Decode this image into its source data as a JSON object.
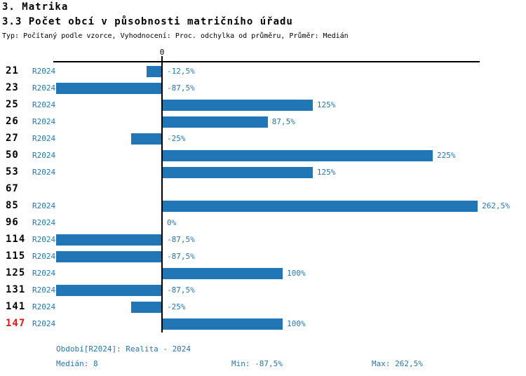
{
  "chart_data": {
    "type": "bar",
    "orientation": "horizontal",
    "title": "3. Matrika",
    "subtitle": "3.3 Počet obcí v působnosti matričního úřadu",
    "meta_line": "Typ: Počítaný podle vzorce, Vyhodnocení: Proc. odchylka od průměru, Průměr: Medián",
    "series_name": "R2024",
    "value_unit": "%",
    "zero_tick_label": "0",
    "grid": false,
    "xlim_pct": [
      -90,
      265
    ],
    "categories": [
      "21",
      "23",
      "25",
      "26",
      "27",
      "50",
      "53",
      "67",
      "85",
      "96",
      "114",
      "115",
      "125",
      "131",
      "141",
      "147"
    ],
    "rows": [
      {
        "category": "21",
        "series": "R2024",
        "value": -12.5,
        "label": "-12,5%",
        "highlight": false
      },
      {
        "category": "23",
        "series": "R2024",
        "value": -87.5,
        "label": "-87,5%",
        "highlight": false
      },
      {
        "category": "25",
        "series": "R2024",
        "value": 125,
        "label": "125%",
        "highlight": false
      },
      {
        "category": "26",
        "series": "R2024",
        "value": 87.5,
        "label": "87,5%",
        "highlight": false
      },
      {
        "category": "27",
        "series": "R2024",
        "value": -25,
        "label": "-25%",
        "highlight": false
      },
      {
        "category": "50",
        "series": "R2024",
        "value": 225,
        "label": "225%",
        "highlight": false
      },
      {
        "category": "53",
        "series": "R2024",
        "value": 125,
        "label": "125%",
        "highlight": false
      },
      {
        "category": "67",
        "series": null,
        "value": null,
        "label": "",
        "highlight": false
      },
      {
        "category": "85",
        "series": "R2024",
        "value": 262.5,
        "label": "262,5%",
        "highlight": false
      },
      {
        "category": "96",
        "series": "R2024",
        "value": 0,
        "label": "0%",
        "highlight": false
      },
      {
        "category": "114",
        "series": "R2024",
        "value": -87.5,
        "label": "-87,5%",
        "highlight": false
      },
      {
        "category": "115",
        "series": "R2024",
        "value": -87.5,
        "label": "-87,5%",
        "highlight": false
      },
      {
        "category": "125",
        "series": "R2024",
        "value": 100,
        "label": "100%",
        "highlight": false
      },
      {
        "category": "131",
        "series": "R2024",
        "value": -87.5,
        "label": "-87,5%",
        "highlight": false
      },
      {
        "category": "141",
        "series": "R2024",
        "value": -25,
        "label": "-25%",
        "highlight": false
      },
      {
        "category": "147",
        "series": "R2024",
        "value": 100,
        "label": "100%",
        "highlight": true
      }
    ],
    "footer": {
      "period": "Období[R2024]: Realita - 2024",
      "median": "Medián: 8",
      "min": "Min: -87,5%",
      "max": "Max: 262,5%"
    }
  },
  "colors": {
    "bar": "#2176b5",
    "text_blue": "#2478b5",
    "highlight_red": "#e81313",
    "axis_black": "#000000"
  }
}
